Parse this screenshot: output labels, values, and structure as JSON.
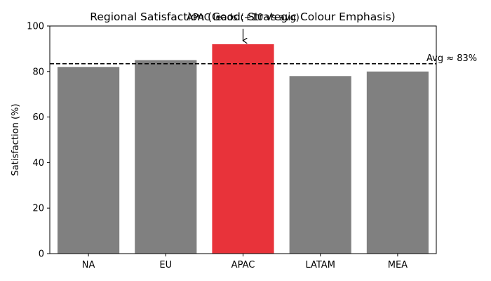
{
  "chart_data": {
    "type": "bar",
    "title": "Regional Satisfaction (Good: Strategic Colour Emphasis)",
    "xlabel": "",
    "ylabel": "Satisfaction (%)",
    "categories": [
      "NA",
      "EU",
      "APAC",
      "LATAM",
      "MEA"
    ],
    "values": [
      82,
      85,
      92,
      78,
      80
    ],
    "ylim": [
      0,
      100
    ],
    "yticks": [
      0,
      20,
      40,
      60,
      80,
      100
    ],
    "grid": false,
    "highlight_category": "APAC",
    "colors": {
      "default": "#808080",
      "highlight": "#e8333a"
    },
    "reference_line": {
      "value": 83.4,
      "label": "Avg ≈ 83%",
      "style": "dashed"
    },
    "annotation": {
      "text": "APAC leads (+10 vs avg)",
      "target": "APAC"
    }
  }
}
